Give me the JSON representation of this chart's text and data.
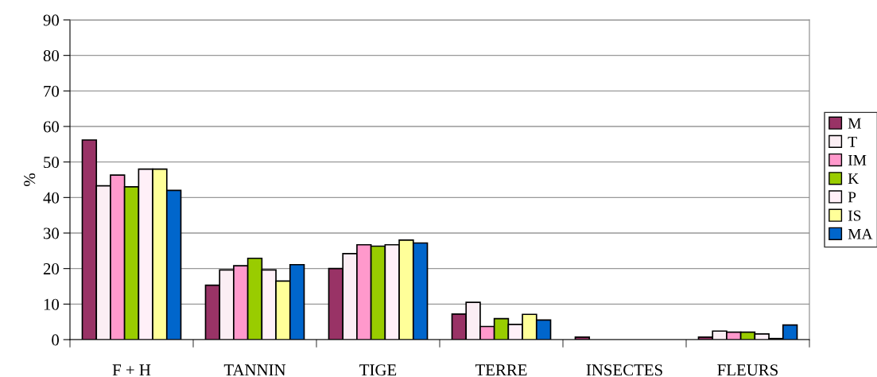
{
  "chart_data": {
    "type": "bar",
    "ylabel": "%",
    "categories": [
      "F + H",
      "TANNIN",
      "TIGE",
      "TERRE",
      "INSECTES",
      "FLEURS"
    ],
    "series": [
      {
        "name": "M",
        "color": "#993366",
        "values": [
          56.2,
          15.3,
          20,
          7.2,
          0.7,
          0.7
        ]
      },
      {
        "name": "T",
        "color": "#fbeef4",
        "values": [
          43.3,
          19.6,
          24.2,
          10.5,
          null,
          2.4
        ]
      },
      {
        "name": "IM",
        "color": "#ff99cc",
        "values": [
          46.3,
          20.8,
          26.7,
          3.7,
          null,
          2.1
        ]
      },
      {
        "name": "K",
        "color": "#99cc00",
        "values": [
          43,
          22.9,
          26.3,
          5.9,
          null,
          2.1
        ]
      },
      {
        "name": "P",
        "color": "#fff0f8",
        "values": [
          48,
          19.6,
          26.7,
          4.3,
          null,
          1.6
        ]
      },
      {
        "name": "IS",
        "color": "#ffff99",
        "values": [
          48,
          16.5,
          28,
          7.1,
          null,
          0.3
        ]
      },
      {
        "name": "MA",
        "color": "#0066cc",
        "values": [
          42,
          21.1,
          27.2,
          5.5,
          null,
          4.1
        ]
      }
    ],
    "ylim": [
      0,
      90
    ],
    "yticks": [
      0,
      10,
      20,
      30,
      40,
      50,
      60,
      70,
      80,
      90
    ],
    "grid": "y",
    "legend": "right"
  }
}
